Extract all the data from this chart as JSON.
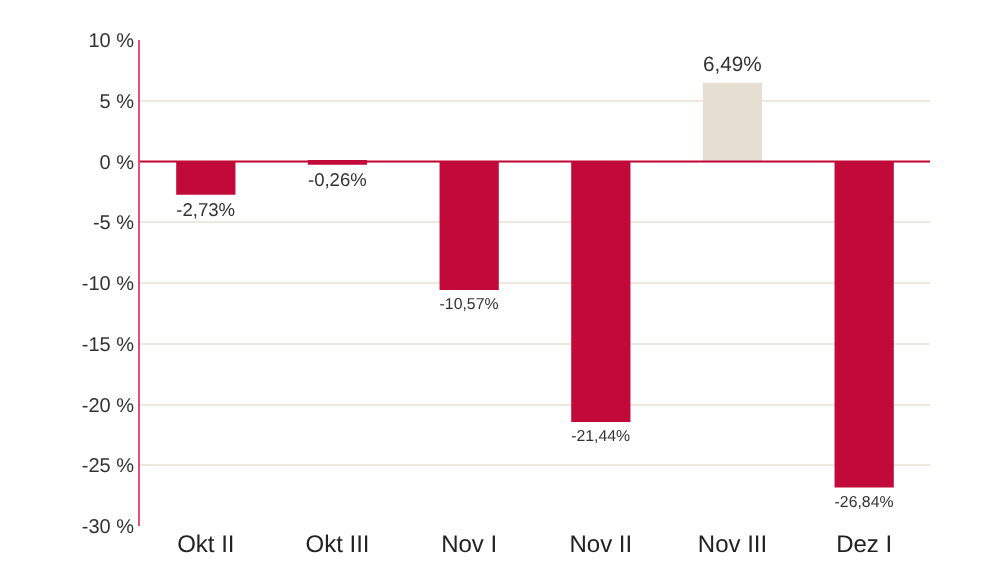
{
  "chart_data": {
    "type": "bar",
    "categories": [
      "Okt II",
      "Okt III",
      "Nov I",
      "Nov II",
      "Nov III",
      "Dez I"
    ],
    "values": [
      -2.73,
      -0.26,
      -10.57,
      -21.44,
      6.49,
      -26.84
    ],
    "colors": [
      "#c20a3a",
      "#c20a3a",
      "#c20a3a",
      "#c20a3a",
      "#e6dfd1",
      "#c20a3a"
    ],
    "value_labels": [
      "-2,73%",
      "-0,26%",
      "-10,57%",
      "-21,44%",
      "6,49%",
      "-26,84%"
    ],
    "ylim": [
      -30,
      10
    ],
    "yticks": [
      {
        "value": 10,
        "label": "10 %"
      },
      {
        "value": 5,
        "label": "5 %"
      },
      {
        "value": 0,
        "label": "0 %"
      },
      {
        "value": -5,
        "label": "-5 %"
      },
      {
        "value": -10,
        "label": "-10 %"
      },
      {
        "value": -15,
        "label": "-15 %"
      },
      {
        "value": -20,
        "label": "-20 %"
      },
      {
        "value": -25,
        "label": "-25 %"
      },
      {
        "value": -30,
        "label": "-30 %"
      }
    ],
    "ref_lines": [
      {
        "axis": "y",
        "value": 0,
        "color": "#c20a3a"
      }
    ],
    "grid": "y"
  }
}
